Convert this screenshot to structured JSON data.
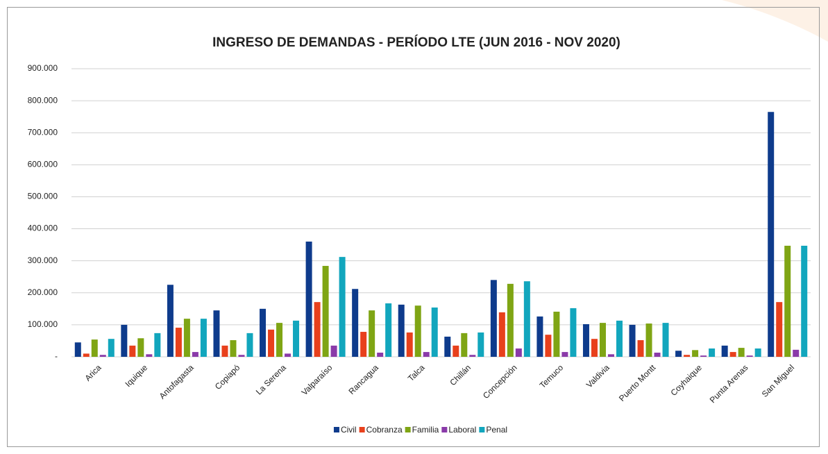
{
  "chart_data": {
    "type": "bar",
    "title": "INGRESO DE DEMANDAS - PERÍODO LTE (JUN 2016 - NOV 2020)",
    "categories": [
      "Arica",
      "Iquique",
      "Antofagasta",
      "Copiapó",
      "La Serena",
      "Valparaíso",
      "Rancagua",
      "Talca",
      "Chillán",
      "Concepción",
      "Temuco",
      "Valdivia",
      "Puerto Montt",
      "Coyhaique",
      "Punta Arenas",
      "San Miguel"
    ],
    "series": [
      {
        "name": "Civil",
        "color": "#0e3b8c",
        "values": [
          45000,
          100000,
          225000,
          145000,
          150000,
          360000,
          212000,
          163000,
          63000,
          240000,
          126000,
          102000,
          100000,
          19000,
          35000,
          765000
        ]
      },
      {
        "name": "Cobranza",
        "color": "#e8401c",
        "values": [
          10000,
          35000,
          91000,
          35000,
          85000,
          171000,
          78000,
          76000,
          35000,
          139000,
          69000,
          56000,
          52000,
          6000,
          15000,
          171000
        ]
      },
      {
        "name": "Familia",
        "color": "#7fa514",
        "values": [
          54000,
          58000,
          119000,
          52000,
          106000,
          284000,
          145000,
          160000,
          74000,
          228000,
          141000,
          106000,
          104000,
          21000,
          28000,
          347000
        ]
      },
      {
        "name": "Laboral",
        "color": "#8a3aa9",
        "values": [
          6000,
          8000,
          15000,
          6000,
          10000,
          35000,
          13000,
          15000,
          6000,
          26000,
          15000,
          8000,
          13000,
          4000,
          4000,
          22000
        ]
      },
      {
        "name": "Penal",
        "color": "#12a6bd",
        "values": [
          56000,
          74000,
          119000,
          74000,
          113000,
          312000,
          167000,
          154000,
          76000,
          236000,
          152000,
          113000,
          106000,
          26000,
          26000,
          347000
        ]
      }
    ],
    "ylim": [
      0,
      900000
    ],
    "yticks": [
      {
        "value": 0,
        "label": "-"
      },
      {
        "value": 100000,
        "label": "100.000"
      },
      {
        "value": 200000,
        "label": "200.000"
      },
      {
        "value": 300000,
        "label": "300.000"
      },
      {
        "value": 400000,
        "label": "400.000"
      },
      {
        "value": 500000,
        "label": "500.000"
      },
      {
        "value": 600000,
        "label": "600.000"
      },
      {
        "value": 700000,
        "label": "700.000"
      },
      {
        "value": 800000,
        "label": "800.000"
      },
      {
        "value": 900000,
        "label": "900.000"
      }
    ],
    "grid": true,
    "legend": "bottom"
  }
}
